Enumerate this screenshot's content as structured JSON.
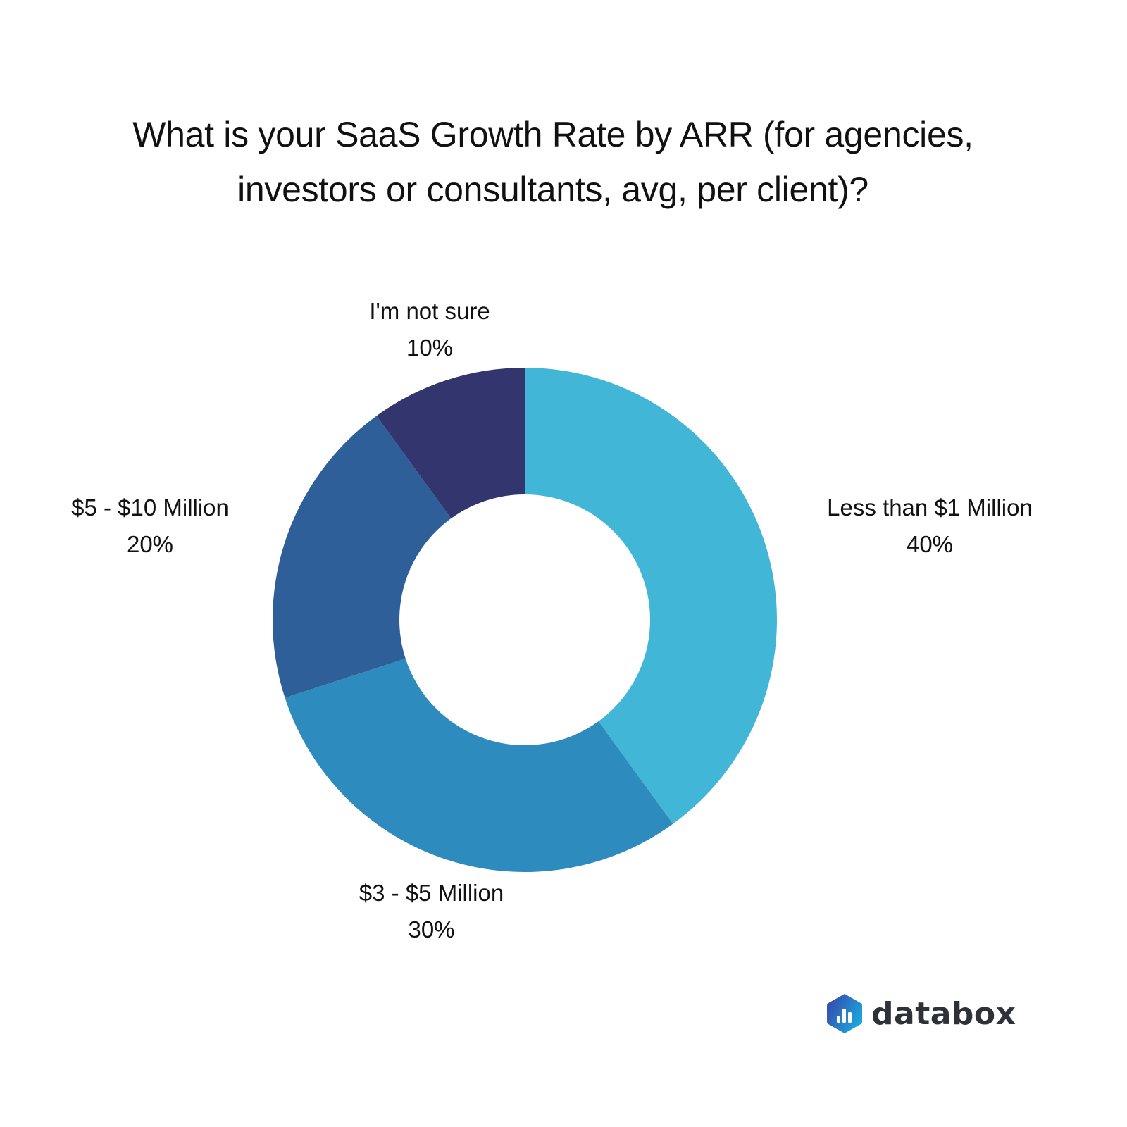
{
  "title": {
    "line1": "What is your SaaS Growth Rate by ARR (for agencies,",
    "line2": "investors or consultants, avg, per client)?"
  },
  "labels": [
    {
      "name": "Less than $1 Million",
      "value": "40%"
    },
    {
      "name": "$3 - $5 Million",
      "value": "30%"
    },
    {
      "name": "$5 - $10 Million",
      "value": "20%"
    },
    {
      "name": "I'm not sure",
      "value": "10%"
    }
  ],
  "colors": {
    "less_than_1m": "#42B6D6",
    "3_to_5m": "#2E8BBD",
    "5_to_10m": "#2F5F98",
    "not_sure": "#33356E"
  },
  "brand": {
    "name": "databox"
  },
  "chart_data": {
    "type": "pie",
    "subtype": "donut",
    "title": "What is your SaaS Growth Rate by ARR (for agencies, investors or consultants, avg, per client)?",
    "categories": [
      "Less than $1 Million",
      "$3 - $5 Million",
      "$5 - $10 Million",
      "I'm not sure"
    ],
    "values": [
      40,
      30,
      20,
      10
    ],
    "unit": "%",
    "colors": [
      "#42B6D6",
      "#2E8BBD",
      "#2F5F98",
      "#33356E"
    ],
    "start_angle": "12 o'clock, clockwise",
    "legend": "none (direct labels)"
  }
}
